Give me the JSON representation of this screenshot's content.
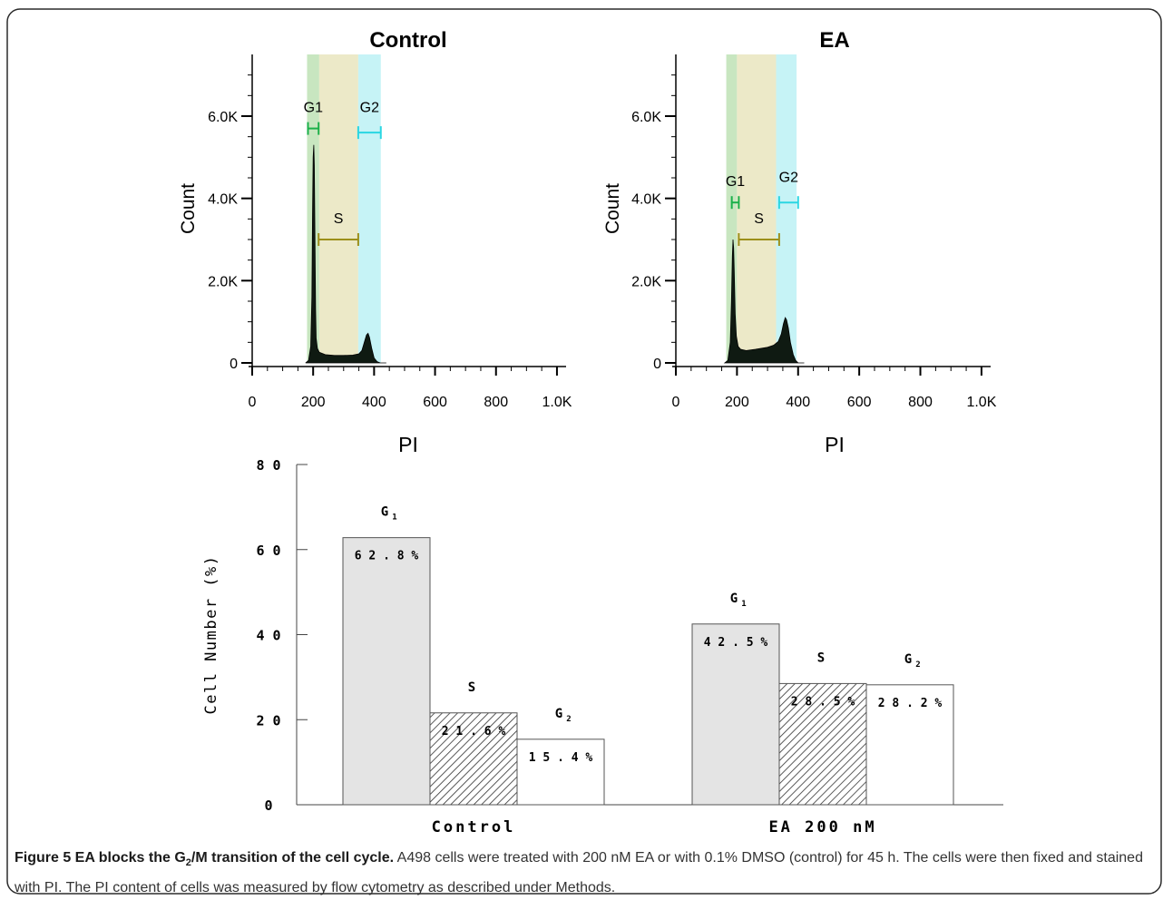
{
  "caption": {
    "title_prefix": "Figure 5 EA blocks the G",
    "title_sub": "2",
    "title_suffix": "/M transition of the cell cycle.",
    "body": "A498 cells were treated with 200 nM EA or with 0.1% DMSO (control) for 45 h. The cells were then fixed and stained with PI. The PI content of cells was measured by flow cytometry as described under Methods."
  },
  "colors": {
    "g1_band": "#c8e6c0",
    "s_band": "#ece9c8",
    "g2_band": "#c6f3f6",
    "g1_marker": "#1bb04a",
    "s_marker": "#9c8f1a",
    "g2_marker": "#2ad6e2",
    "histogram_fill": "#0f1a12",
    "bar_g1": "#e4e4e4",
    "bar_s": "hatched",
    "bar_g2": "#ffffff",
    "frame": "#222222"
  },
  "chart_data": [
    {
      "type": "area",
      "title": "Control",
      "xlabel": "PI",
      "ylabel": "Count",
      "xlim": [
        0,
        1024
      ],
      "ylim": [
        0,
        7500
      ],
      "x_ticks": [
        "0",
        "200",
        "400",
        "600",
        "800",
        "1.0K"
      ],
      "y_ticks": [
        "0",
        "2.0K",
        "4.0K",
        "6.0K"
      ],
      "gates": [
        {
          "label": "G1",
          "range": [
            183,
            218
          ],
          "label_y": 6100,
          "marker_y": 5700
        },
        {
          "label": "S",
          "range": [
            218,
            348
          ],
          "label_y": 3400,
          "marker_y": 3000
        },
        {
          "label": "G2",
          "range": [
            348,
            422
          ],
          "label_y": 6100,
          "marker_y": 5600
        }
      ],
      "bands": [
        [
          180,
          220
        ],
        [
          220,
          348
        ],
        [
          348,
          422
        ]
      ],
      "histogram": {
        "x": [
          175,
          185,
          192,
          196,
          198,
          200,
          202,
          204,
          206,
          208,
          210,
          214,
          220,
          240,
          270,
          300,
          330,
          350,
          360,
          368,
          375,
          380,
          385,
          392,
          400,
          410,
          420,
          440
        ],
        "y": [
          0,
          60,
          400,
          1600,
          3600,
          5000,
          5300,
          4800,
          3000,
          1300,
          600,
          350,
          260,
          200,
          180,
          180,
          190,
          220,
          300,
          500,
          680,
          720,
          620,
          360,
          120,
          30,
          0,
          0
        ]
      }
    },
    {
      "type": "area",
      "title": "EA",
      "xlabel": "PI",
      "ylabel": "Count",
      "xlim": [
        0,
        1024
      ],
      "ylim": [
        0,
        7500
      ],
      "x_ticks": [
        "0",
        "200",
        "400",
        "600",
        "800",
        "1.0K"
      ],
      "y_ticks": [
        "0",
        "2.0K",
        "4.0K",
        "6.0K"
      ],
      "gates": [
        {
          "label": "G1",
          "range": [
            183,
            206
          ],
          "label_y": 4300,
          "marker_y": 3900
        },
        {
          "label": "S",
          "range": [
            206,
            338
          ],
          "label_y": 3400,
          "marker_y": 3000
        },
        {
          "label": "G2",
          "range": [
            338,
            400
          ],
          "label_y": 4400,
          "marker_y": 3900
        }
      ],
      "bands": [
        [
          165,
          200
        ],
        [
          200,
          328
        ],
        [
          328,
          395
        ]
      ],
      "histogram": {
        "x": [
          160,
          170,
          178,
          182,
          185,
          187,
          189,
          191,
          194,
          198,
          204,
          212,
          230,
          260,
          300,
          320,
          335,
          345,
          352,
          358,
          362,
          368,
          375,
          384,
          392,
          400,
          420
        ],
        "y": [
          0,
          60,
          500,
          1500,
          2600,
          3000,
          2800,
          2200,
          1200,
          650,
          400,
          330,
          300,
          330,
          380,
          430,
          520,
          700,
          950,
          1100,
          1050,
          850,
          500,
          200,
          60,
          0,
          0
        ]
      }
    },
    {
      "type": "bar",
      "categories": [
        "Control",
        "EA  200  nM"
      ],
      "ylabel": "Cell  Number  (%)",
      "ylim": [
        0,
        80
      ],
      "y_ticks": [
        "0",
        "2 0",
        "4 0",
        "6 0",
        "8 0"
      ],
      "series": [
        {
          "name": "G1",
          "values": [
            62.8,
            42.5
          ],
          "labels": [
            "6 2 . 8 %",
            "4 2 . 5 %"
          ]
        },
        {
          "name": "S",
          "values": [
            21.6,
            28.5
          ],
          "labels": [
            "2 1 . 6 %",
            "2 8 . 5 %"
          ]
        },
        {
          "name": "G2",
          "values": [
            15.4,
            28.2
          ],
          "labels": [
            "1 5 . 4 %",
            "2 8 . 2 %"
          ]
        }
      ],
      "bar_titles": {
        "G1": "G",
        "G1_sub": "1",
        "S": "S",
        "G2": "G",
        "G2_sub": "2"
      }
    }
  ]
}
